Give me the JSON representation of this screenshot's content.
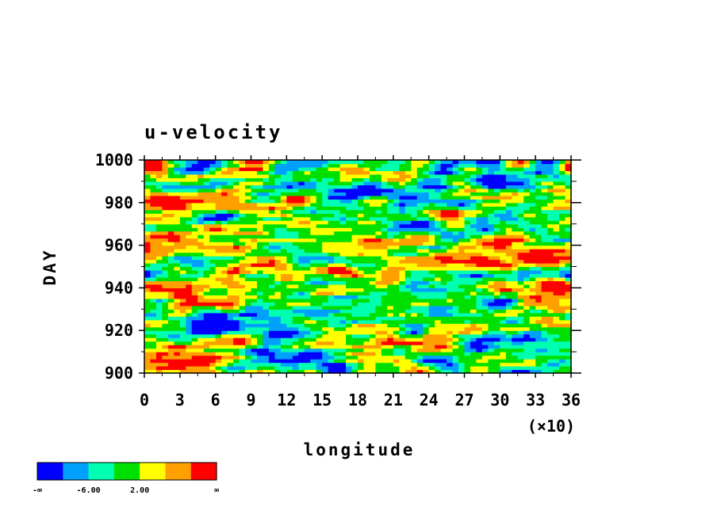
{
  "chart_data": {
    "type": "heatmap",
    "title": "u-velocity",
    "xlabel": "longitude",
    "ylabel": "DAY",
    "x_multiplier_label": "(×10)",
    "xlim": [
      0,
      36
    ],
    "ylim": [
      900,
      1000
    ],
    "x_ticks": [
      "0",
      "3",
      "6",
      "9",
      "12",
      "15",
      "18",
      "21",
      "24",
      "27",
      "30",
      "33",
      "36"
    ],
    "y_ticks": [
      "900",
      "920",
      "940",
      "960",
      "980",
      "1000"
    ],
    "colorbar": {
      "colors": [
        "#0000ff",
        "#00a0ff",
        "#00ffb0",
        "#00e000",
        "#ffff00",
        "#ffa000",
        "#ff0000"
      ],
      "labels": [
        "-∞",
        "-6.00",
        "2.00",
        "∞"
      ]
    },
    "field_summary": {
      "x_points": 72,
      "y_points": 60,
      "dominant_structures": [
        {
          "x": 20,
          "y": 985,
          "value": "low"
        },
        {
          "x": 14,
          "y": 905,
          "value": "low"
        },
        {
          "x": 8,
          "y": 924,
          "value": "low"
        },
        {
          "x": 28,
          "y": 952,
          "value": "high"
        },
        {
          "x": 34,
          "y": 938,
          "value": "high"
        },
        {
          "x": 2,
          "y": 962,
          "value": "high"
        },
        {
          "x": 3,
          "y": 940,
          "value": "high"
        },
        {
          "x": 2,
          "y": 907,
          "value": "high"
        },
        {
          "x": 5,
          "y": 980,
          "value": "high"
        }
      ]
    }
  }
}
